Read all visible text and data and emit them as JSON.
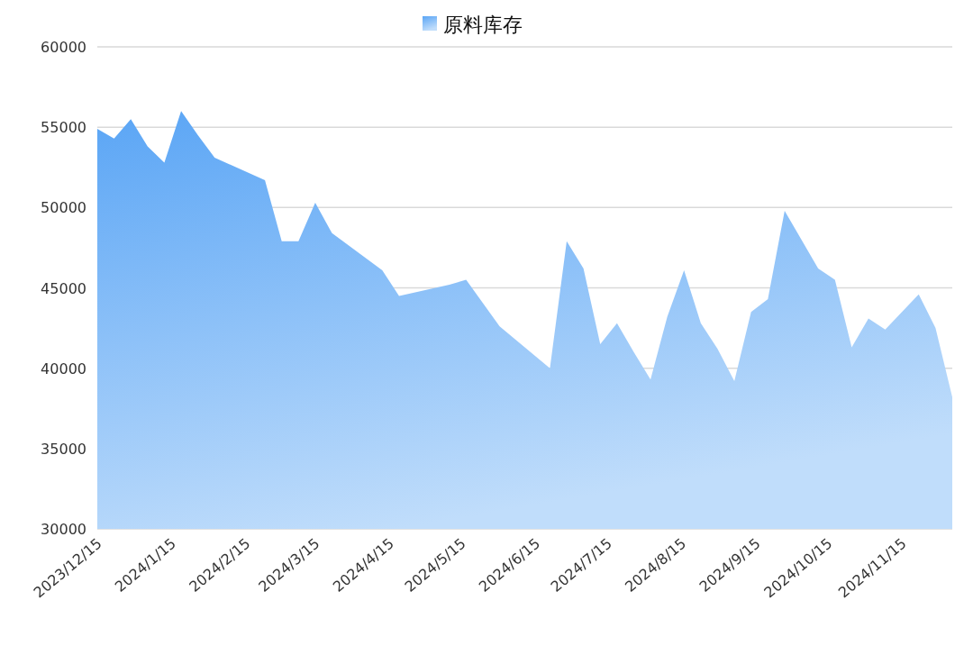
{
  "chart_data": {
    "type": "area",
    "legend": "top",
    "grid": "y",
    "xlim": [
      "2023-12-15",
      "2024-12-06"
    ],
    "xticks": [
      {
        "value": "2023-12-15",
        "label": "2023/12/15"
      },
      {
        "value": "2024-01-15",
        "label": "2024/1/15"
      },
      {
        "value": "2024-02-15",
        "label": "2024/2/15"
      },
      {
        "value": "2024-03-15",
        "label": "2024/3/15"
      },
      {
        "value": "2024-04-15",
        "label": "2024/4/15"
      },
      {
        "value": "2024-05-15",
        "label": "2024/5/15"
      },
      {
        "value": "2024-06-15",
        "label": "2024/6/15"
      },
      {
        "value": "2024-07-15",
        "label": "2024/7/15"
      },
      {
        "value": "2024-08-15",
        "label": "2024/8/15"
      },
      {
        "value": "2024-09-15",
        "label": "2024/9/15"
      },
      {
        "value": "2024-10-15",
        "label": "2024/10/15"
      },
      {
        "value": "2024-11-15",
        "label": "2024/11/15"
      }
    ],
    "ylim": [
      30000,
      60000
    ],
    "yticks": [
      30000,
      35000,
      40000,
      45000,
      50000,
      55000,
      60000
    ],
    "series": [
      {
        "name": "原料库存",
        "color": "#5aa5f5",
        "x": [
          "2023-12-15",
          "2023-12-22",
          "2023-12-29",
          "2024-01-05",
          "2024-01-12",
          "2024-01-19",
          "2024-01-26",
          "2024-02-02",
          "2024-02-23",
          "2024-03-01",
          "2024-03-08",
          "2024-03-15",
          "2024-03-22",
          "2024-04-12",
          "2024-04-19",
          "2024-05-10",
          "2024-05-17",
          "2024-05-31",
          "2024-06-21",
          "2024-06-28",
          "2024-07-05",
          "2024-07-12",
          "2024-07-19",
          "2024-07-26",
          "2024-08-02",
          "2024-08-09",
          "2024-08-16",
          "2024-08-23",
          "2024-08-30",
          "2024-09-06",
          "2024-09-13",
          "2024-09-20",
          "2024-09-27",
          "2024-10-11",
          "2024-10-18",
          "2024-10-25",
          "2024-11-01",
          "2024-11-08",
          "2024-11-22",
          "2024-11-29",
          "2024-12-06"
        ],
        "values": [
          54900,
          54300,
          55500,
          53800,
          52800,
          56000,
          54500,
          53100,
          51700,
          47900,
          47900,
          50300,
          48400,
          46100,
          44500,
          45200,
          45500,
          42600,
          40000,
          47900,
          46200,
          41500,
          42800,
          41000,
          39300,
          43200,
          46100,
          42800,
          41200,
          39200,
          43500,
          44300,
          49800,
          46200,
          45500,
          41300,
          43100,
          42400,
          44600,
          42500,
          38200
        ]
      }
    ]
  }
}
